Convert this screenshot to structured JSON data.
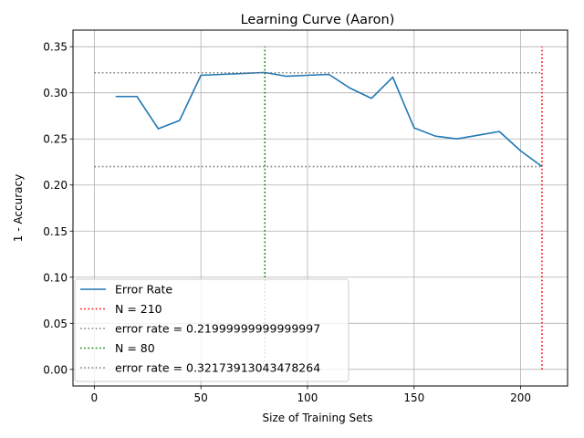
{
  "chart_data": {
    "type": "line",
    "title": "Learning Curve (Aaron)",
    "xlabel": "Size of Training Sets",
    "ylabel": "1 - Accuracy",
    "xlim": [
      -10,
      222
    ],
    "ylim": [
      -0.018,
      0.368
    ],
    "xticks": [
      0,
      50,
      100,
      150,
      200
    ],
    "xtick_labels": [
      "0",
      "50",
      "100",
      "150",
      "200"
    ],
    "yticks": [
      0.0,
      0.05,
      0.1,
      0.15,
      0.2,
      0.25,
      0.3,
      0.35
    ],
    "ytick_labels": [
      "0.00",
      "0.05",
      "0.10",
      "0.15",
      "0.20",
      "0.25",
      "0.30",
      "0.35"
    ],
    "grid": true,
    "legend_position": "lower-left",
    "series": [
      {
        "name": "Error Rate",
        "kind": "line",
        "color": "#1f77b4",
        "x": [
          10,
          20,
          30,
          40,
          50,
          60,
          70,
          80,
          90,
          100,
          110,
          120,
          130,
          140,
          150,
          160,
          170,
          180,
          190,
          200,
          210
        ],
        "y": [
          0.296,
          0.296,
          0.261,
          0.27,
          0.319,
          0.32,
          0.321,
          0.322,
          0.318,
          0.319,
          0.32,
          0.305,
          0.294,
          0.317,
          0.262,
          0.253,
          0.25,
          0.254,
          0.258,
          0.237,
          0.22
        ]
      },
      {
        "name": "N = 210",
        "kind": "vline",
        "color": "#ff0000",
        "x": 210,
        "ymin": 0.0,
        "ymax": 0.35
      },
      {
        "name": "error rate = 0.21999999999999997",
        "kind": "hline",
        "color": "#808080",
        "y": 0.22,
        "xmin": 0,
        "xmax": 210
      },
      {
        "name": "N = 80",
        "kind": "vline",
        "color": "#008000",
        "x": 80,
        "ymin": 0.0,
        "ymax": 0.35
      },
      {
        "name": "error rate = 0.32173913043478264",
        "kind": "hline",
        "color": "#808080",
        "y": 0.32173913043478264,
        "xmin": 0,
        "xmax": 210
      }
    ]
  }
}
